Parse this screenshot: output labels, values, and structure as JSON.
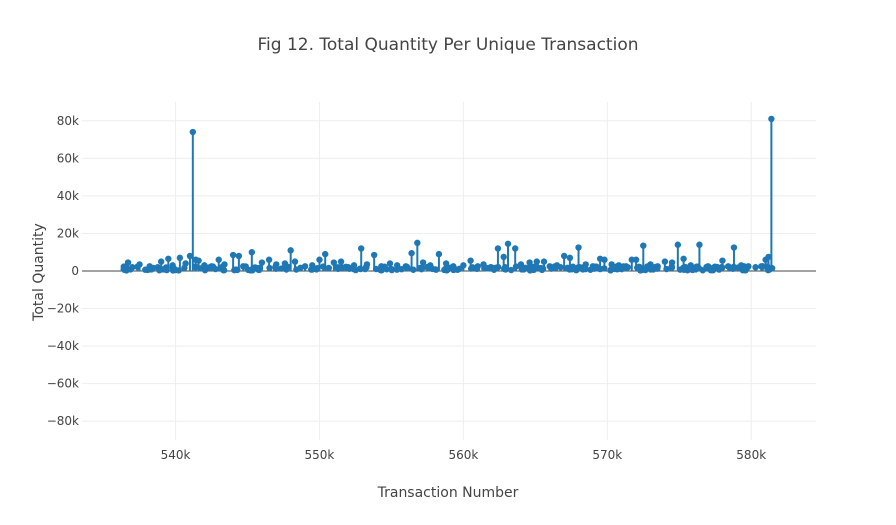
{
  "chart_data": {
    "type": "scatter",
    "mode": "lines+markers (stem)",
    "title": "Fig 12. Total Quantity Per Unique Transaction",
    "xlabel": "Transaction Number",
    "ylabel": "Total Quantity",
    "xlim": [
      533500,
      584500
    ],
    "ylim": [
      -90000,
      90000
    ],
    "x_ticks": [
      540000,
      550000,
      560000,
      570000,
      580000
    ],
    "x_tick_labels": [
      "540k",
      "550k",
      "560k",
      "570k",
      "580k"
    ],
    "y_ticks": [
      -80000,
      -60000,
      -40000,
      -20000,
      0,
      20000,
      40000,
      60000,
      80000
    ],
    "y_tick_labels": [
      "−80k",
      "−60k",
      "−40k",
      "−20k",
      "0",
      "20k",
      "40k",
      "60k",
      "80k"
    ],
    "grid": true,
    "color": "#1f77b4",
    "series": [
      {
        "x": [
          536400,
          536700,
          537000,
          537500,
          538200,
          539000,
          539500,
          539800,
          540300,
          540700,
          541000,
          541200,
          541400,
          541600,
          542000,
          542500,
          543000,
          543400,
          544000,
          544400,
          544700,
          545300,
          546000,
          546500,
          547000,
          547600,
          548000,
          548300,
          549000,
          549500,
          550000,
          550400,
          551000,
          551500,
          552000,
          552400,
          552900,
          553300,
          553800,
          554300,
          554900,
          555400,
          556000,
          556400,
          556800,
          557200,
          557700,
          558300,
          558800,
          559300,
          560000,
          560500,
          561000,
          561400,
          561900,
          562400,
          562800,
          563100,
          563600,
          564000,
          564600,
          565100,
          565600,
          566000,
          566500,
          567000,
          567400,
          568000,
          568500,
          569000,
          569500,
          569800,
          570300,
          570800,
          571300,
          571700,
          572000,
          572500,
          573000,
          573500,
          574000,
          574500,
          574900,
          575300,
          575800,
          576400,
          577000,
          577500,
          578000,
          578400,
          578800,
          579300,
          579800,
          580300,
          580700,
          581000,
          581200,
          581400,
          581450
        ],
        "y": [
          1000,
          4500,
          2000,
          3500,
          2500,
          5000,
          6500,
          3000,
          7000,
          4000,
          8000,
          74000,
          6000,
          5500,
          3000,
          2500,
          6000,
          3500,
          8500,
          8000,
          2500,
          10000,
          4500,
          6000,
          3500,
          4000,
          11000,
          5000,
          2500,
          3000,
          6000,
          9000,
          4500,
          5000,
          2000,
          3000,
          12000,
          3500,
          8500,
          2500,
          4000,
          3000,
          2500,
          9500,
          15000,
          4500,
          3000,
          9000,
          4000,
          2500,
          3000,
          5500,
          2500,
          3500,
          2000,
          12000,
          7500,
          14500,
          12000,
          3500,
          4500,
          5000,
          5000,
          2500,
          3000,
          8000,
          7000,
          12500,
          3500,
          2500,
          6500,
          6000,
          3500,
          3000,
          2500,
          6000,
          6000,
          13500,
          3500,
          2500,
          5000,
          4500,
          14000,
          6500,
          3000,
          14000,
          2500,
          2000,
          5500,
          2500,
          12500,
          3000,
          2500,
          2000,
          2500,
          6000,
          7500,
          81000,
          1500
        ]
      }
    ]
  }
}
